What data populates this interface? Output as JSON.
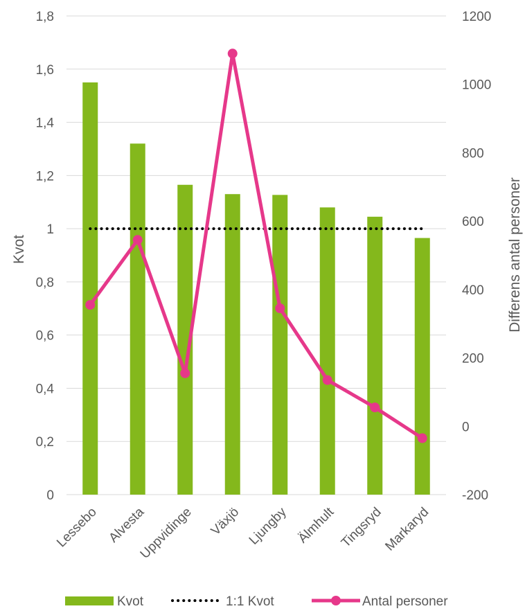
{
  "chart_data": {
    "type": "bar",
    "title": "",
    "categories": [
      "Lessebo",
      "Alvesta",
      "Uppvidinge",
      "Växjö",
      "Ljungby",
      "Älmhult",
      "Tingsryd",
      "Markaryd"
    ],
    "series": [
      {
        "name": "Kvot",
        "type": "bar",
        "axis": "left",
        "color": "#84b81c",
        "values": [
          1.55,
          1.32,
          1.165,
          1.13,
          1.127,
          1.08,
          1.045,
          0.965
        ]
      },
      {
        "name": "1:1 Kvot",
        "type": "line",
        "style": "dotted",
        "axis": "left",
        "color": "#000000",
        "values": [
          1,
          1,
          1,
          1,
          1,
          1,
          1,
          1
        ]
      },
      {
        "name": "Antal personer",
        "type": "line",
        "markers": true,
        "axis": "right",
        "color": "#e6388a",
        "values": [
          355,
          545,
          155,
          1090,
          345,
          135,
          55,
          -35
        ]
      }
    ],
    "ylabel": "Kvot",
    "ylabel_right": "Differens antal personer",
    "ylim": [
      0,
      1.8
    ],
    "ylim_right": [
      -200,
      1200
    ],
    "yticks": [
      "0",
      "0,2",
      "0,4",
      "0,6",
      "0,8",
      "1",
      "1,2",
      "1,4",
      "1,6",
      "1,8"
    ],
    "yticks_right": [
      "-200",
      "0",
      "200",
      "400",
      "600",
      "800",
      "1000",
      "1200"
    ],
    "grid": true,
    "legend": "bottom"
  }
}
